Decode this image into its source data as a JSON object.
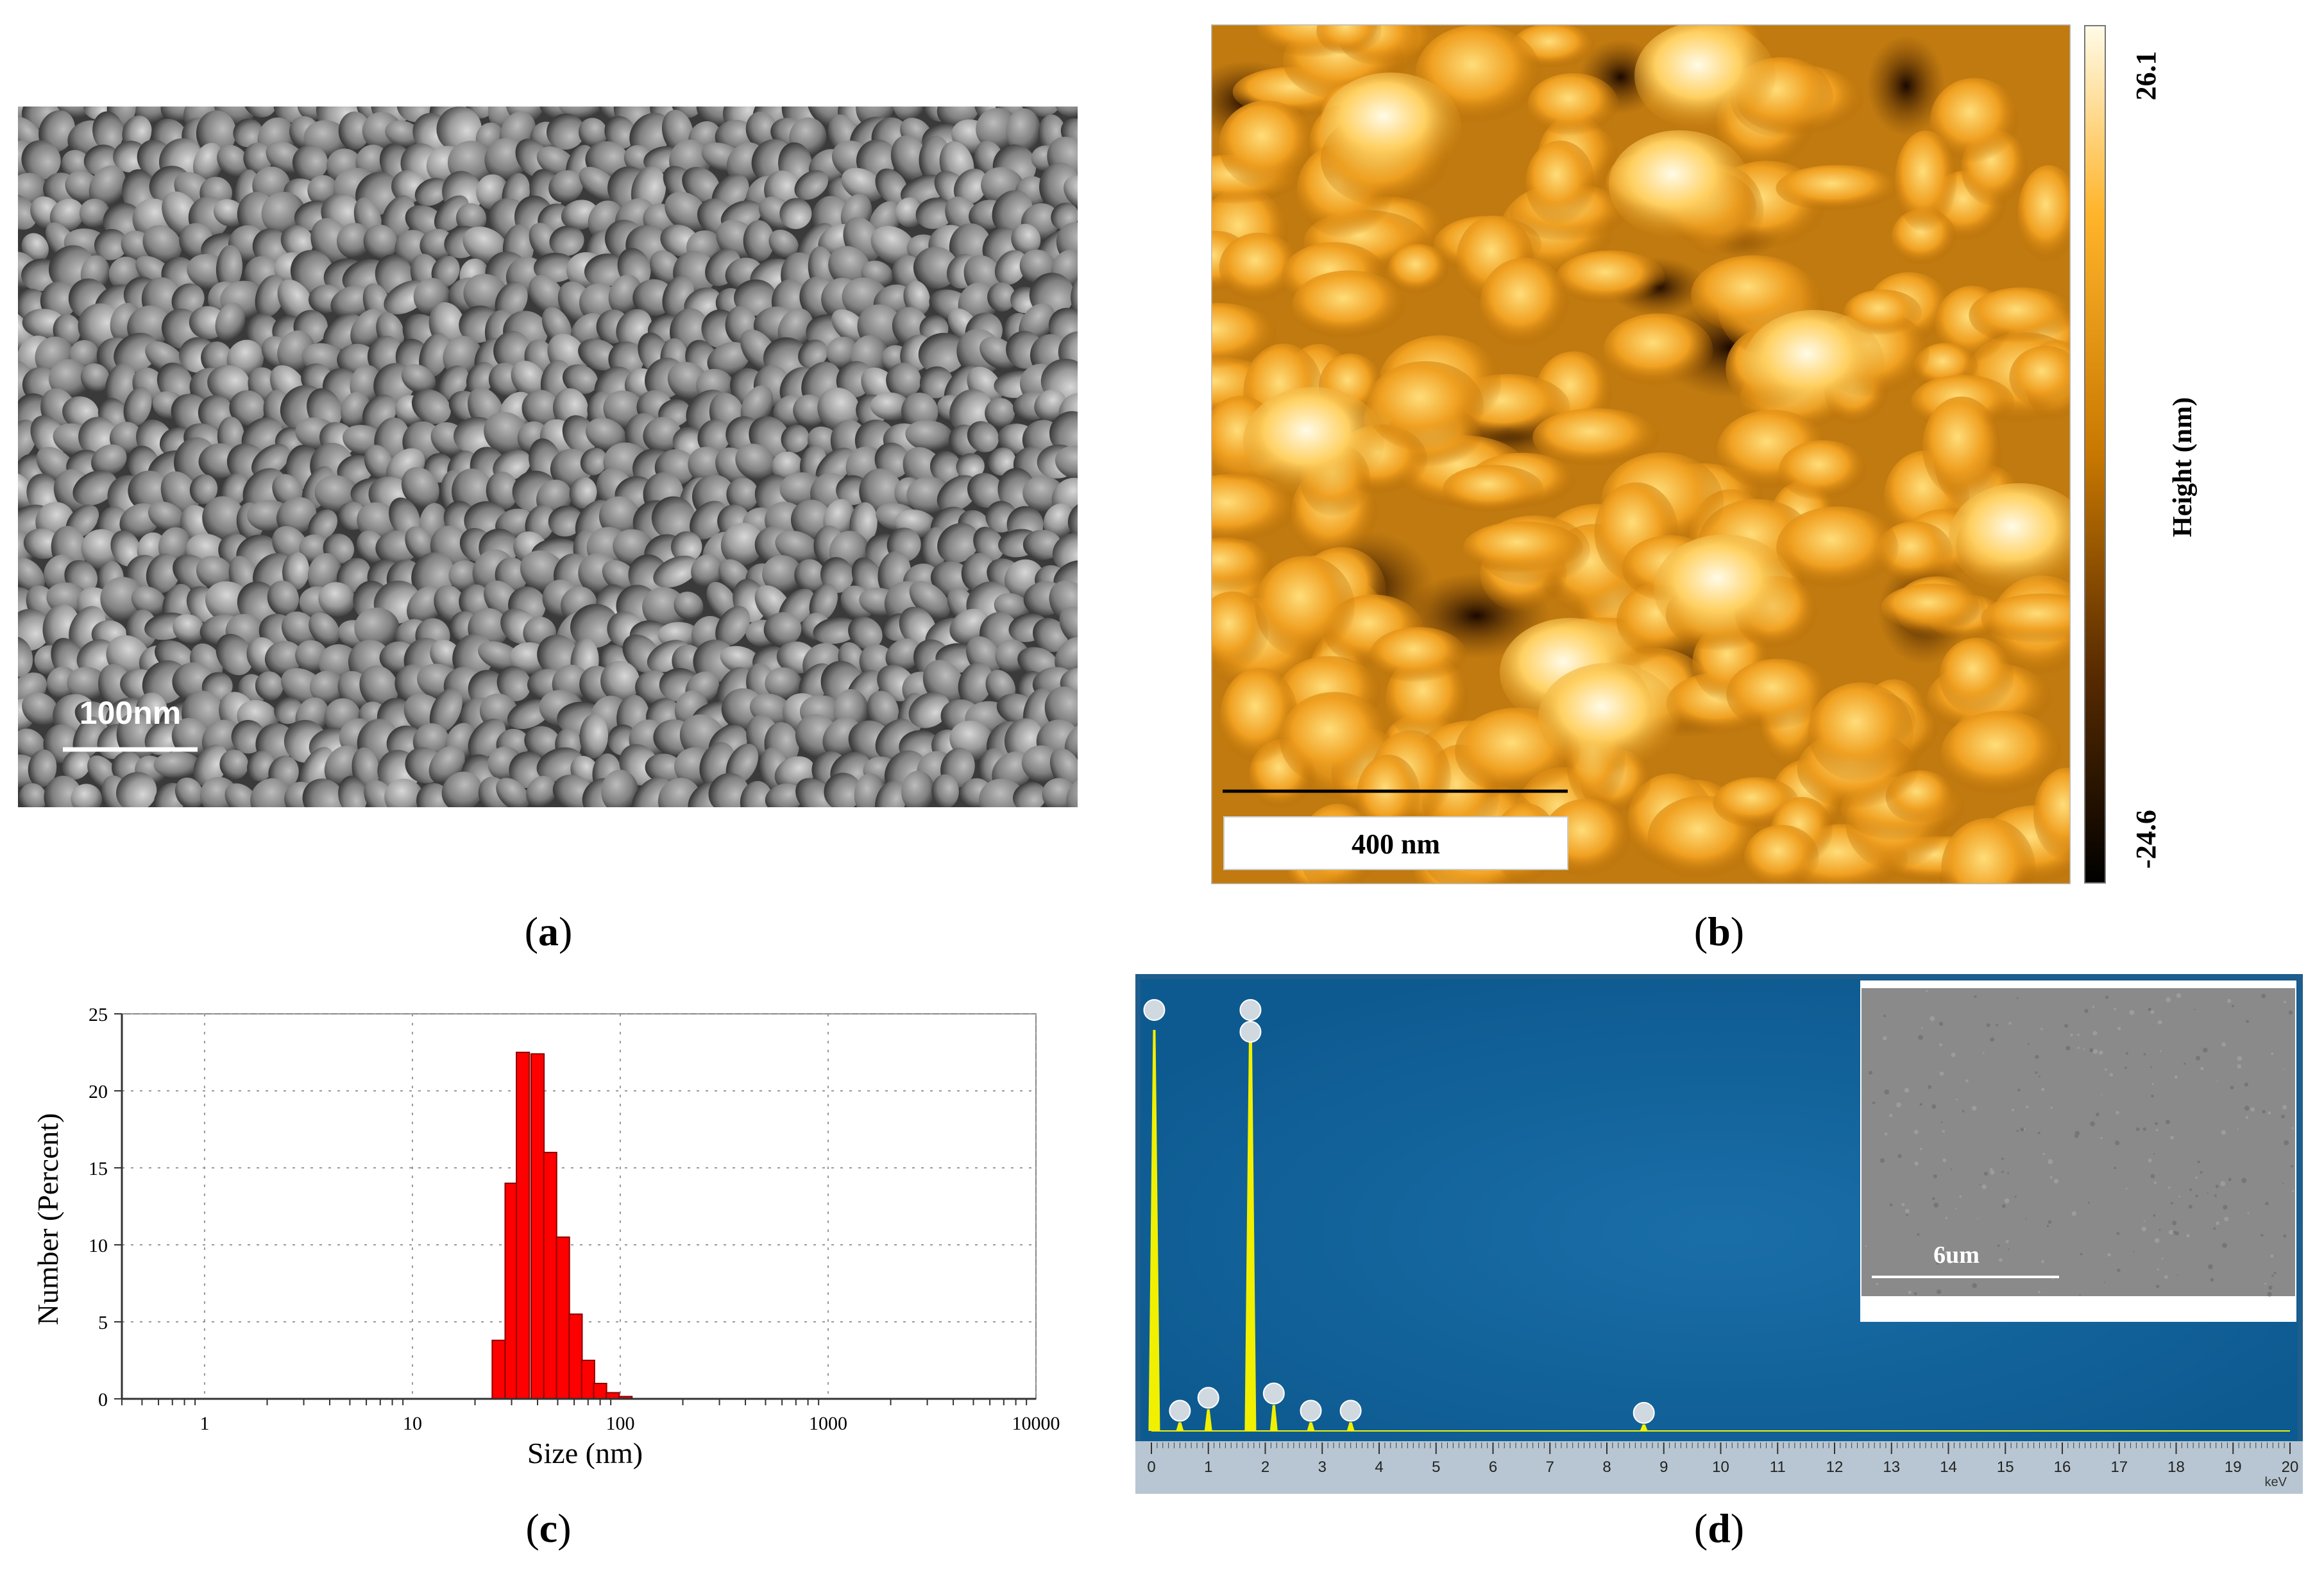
{
  "panel_a": {
    "scale_label": "100nm",
    "caption": "a"
  },
  "panel_b": {
    "scale_label": "400 nm",
    "colorbar_max": "26.1",
    "colorbar_min": "-24.6",
    "colorbar_title": "Height (nm)",
    "caption": "b",
    "colors": {
      "dark": "#000000",
      "mid": "#c87800",
      "bright": "#ffb42a",
      "top": "#fffbe8"
    }
  },
  "panel_c": {
    "caption": "c",
    "chart_data": {
      "type": "bar",
      "xscale": "log",
      "xlabel": "Size (nm)",
      "ylabel": "Number (Percent)",
      "xlim": [
        0.4,
        10000
      ],
      "ylim": [
        0,
        25
      ],
      "xticks": [
        "1",
        "10",
        "100",
        "1000",
        "10000"
      ],
      "yticks": [
        "0",
        "5",
        "10",
        "15",
        "20",
        "25"
      ],
      "bars": [
        {
          "x": 26,
          "value": 3.8
        },
        {
          "x": 30,
          "value": 14
        },
        {
          "x": 34,
          "value": 22.5
        },
        {
          "x": 40,
          "value": 22.4
        },
        {
          "x": 46,
          "value": 16
        },
        {
          "x": 53,
          "value": 10.5
        },
        {
          "x": 61,
          "value": 5.5
        },
        {
          "x": 70,
          "value": 2.5
        },
        {
          "x": 80,
          "value": 1.0
        },
        {
          "x": 92,
          "value": 0.4
        },
        {
          "x": 106,
          "value": 0.15
        }
      ],
      "bar_color": "#ff0000"
    }
  },
  "panel_d": {
    "caption": "d",
    "inset_scale_label": "6um",
    "axis_unit": "keV",
    "ticks": [
      "0",
      "1",
      "2",
      "3",
      "4",
      "5",
      "6",
      "7",
      "8",
      "9",
      "10",
      "11",
      "12",
      "13",
      "14",
      "15",
      "16",
      "17",
      "18",
      "19",
      "20"
    ],
    "chart_data": {
      "type": "line",
      "xlabel": "keV",
      "xlim": [
        0,
        20
      ],
      "peaks": [
        {
          "x": 0.05,
          "height": 0.93
        },
        {
          "x": 0.5,
          "height": 0.02
        },
        {
          "x": 1.0,
          "height": 0.05
        },
        {
          "x": 1.74,
          "height": 0.98
        },
        {
          "x": 2.15,
          "height": 0.06
        },
        {
          "x": 2.8,
          "height": 0.02
        },
        {
          "x": 3.5,
          "height": 0.02
        },
        {
          "x": 8.65,
          "height": 0.015
        }
      ]
    },
    "colors": {
      "bg": "#0f5f96",
      "spectrum": "#f0f000",
      "inset": "#8a8a8a"
    }
  }
}
